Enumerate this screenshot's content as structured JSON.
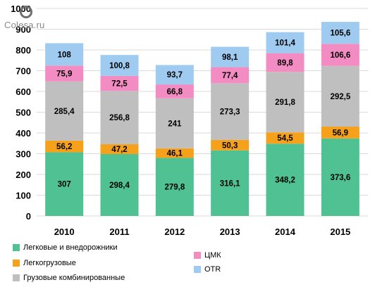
{
  "watermark": {
    "text": "Colesa.ru"
  },
  "chart_data": {
    "type": "bar",
    "stacked": true,
    "categories": [
      "2010",
      "2011",
      "2012",
      "2013",
      "2014",
      "2015"
    ],
    "ylim": [
      0,
      1000
    ],
    "yticks": [
      0,
      100,
      200,
      300,
      400,
      500,
      600,
      700,
      800,
      900,
      1000
    ],
    "grid": true,
    "legend_position": "bottom",
    "series": [
      {
        "name": "Легковые и внедорожники",
        "color": "#4fc192",
        "values": [
          307,
          298.4,
          279.8,
          316.1,
          348.2,
          373.6
        ],
        "labels": [
          "307",
          "298,4",
          "279,8",
          "316,1",
          "348,2",
          "373,6"
        ]
      },
      {
        "name": "Легкогрузовые",
        "color": "#f5a11c",
        "values": [
          56.2,
          47.2,
          46.1,
          50.3,
          54.5,
          56.9
        ],
        "labels": [
          "56,2",
          "47,2",
          "46,1",
          "50,3",
          "54,5",
          "56,9"
        ]
      },
      {
        "name": "Грузовые комбинированные",
        "color": "#bfbfbf",
        "values": [
          285.4,
          256.8,
          241,
          273.3,
          291.8,
          292.5
        ],
        "labels": [
          "285,4",
          "256,8",
          "241",
          "273,3",
          "291,8",
          "292,5"
        ]
      },
      {
        "name": "ЦМК",
        "color": "#f38cc2",
        "values": [
          75.9,
          72.5,
          66.8,
          77.4,
          89.8,
          106.6
        ],
        "labels": [
          "75,9",
          "72,5",
          "66,8",
          "77,4",
          "89,8",
          "106,6"
        ]
      },
      {
        "name": "OTR",
        "color": "#9fcbf0",
        "values": [
          108,
          100.8,
          93.7,
          98.1,
          101.4,
          105.6
        ],
        "labels": [
          "108",
          "100,8",
          "93,7",
          "98,1",
          "101,4",
          "105,6"
        ]
      }
    ]
  }
}
